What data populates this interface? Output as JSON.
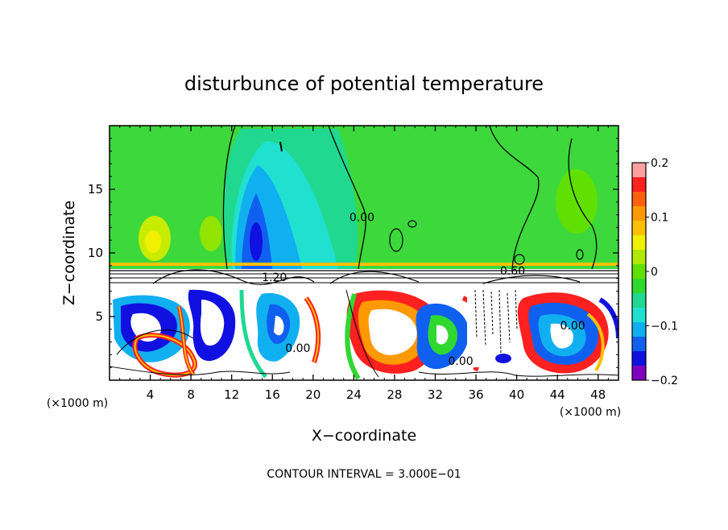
{
  "chart_data": {
    "type": "heatmap",
    "title": "disturbunce of potential temperature",
    "xlabel": "X−coordinate",
    "ylabel": "Z−coordinate",
    "x_unit_left": "(×1000 m)",
    "x_unit_right": "(×1000 m)",
    "footer": "CONTOUR INTERVAL = 3.000E−01",
    "xlim": [
      0,
      50
    ],
    "ylim": [
      0,
      20
    ],
    "x_ticks": [
      4,
      8,
      12,
      16,
      20,
      24,
      28,
      32,
      36,
      40,
      44,
      48
    ],
    "x_tick_labels": [
      "4",
      "8",
      "12",
      "16",
      "20",
      "24",
      "28",
      "32",
      "36",
      "40",
      "44",
      "48"
    ],
    "y_ticks": [
      5,
      10,
      15
    ],
    "y_tick_labels": [
      "5",
      "10",
      "15"
    ],
    "colorbar": {
      "min": -0.2,
      "max": 0.2,
      "ticks": [
        0.2,
        0.1,
        0,
        -0.1,
        -0.2
      ],
      "tick_labels": [
        "0.2",
        "0.1",
        "0",
        "−0.1",
        "−0.2"
      ],
      "colors": [
        "#ffa0a0",
        "#ff2020",
        "#ff6010",
        "#ff9900",
        "#ffc000",
        "#f0f000",
        "#b0e800",
        "#60e000",
        "#30d830",
        "#20d890",
        "#20e0d0",
        "#10b0f0",
        "#1060f0",
        "#1010e0",
        "#8000c0"
      ]
    },
    "contour_labels": [
      {
        "text": "0.60",
        "x": 39.6,
        "y": 8.3
      },
      {
        "text": "1.20",
        "x": 16.2,
        "y": 7.8
      },
      {
        "text": "0.00",
        "x": 34.5,
        "y": 1.2
      },
      {
        "text": "0.00",
        "x": 24.8,
        "y": 12.5
      },
      {
        "text": "0.00",
        "x": 45.5,
        "y": 4.0
      },
      {
        "text": "0.00",
        "x": 18.5,
        "y": 2.2
      }
    ]
  }
}
